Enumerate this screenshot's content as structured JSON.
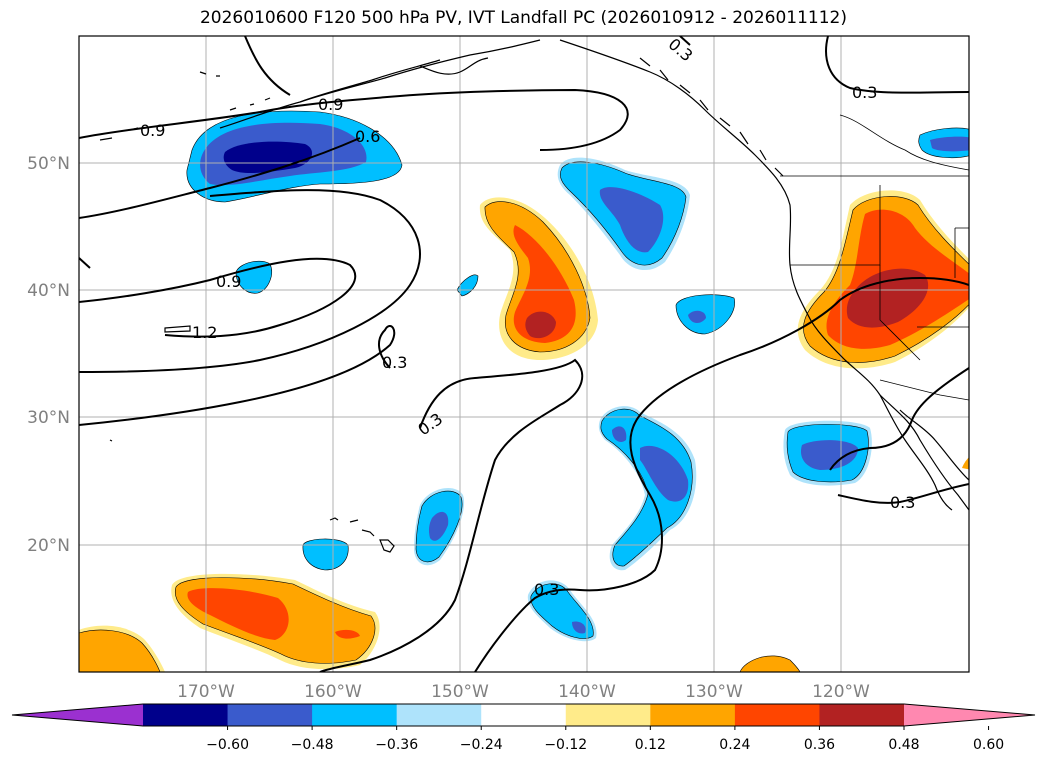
{
  "title": "2026010600 F120 500 hPa PV, IVT Landfall PC (2026010912 - 2026011112)",
  "lon_labels": [
    "170°W",
    "160°W",
    "150°W",
    "140°W",
    "130°W",
    "120°W"
  ],
  "lat_labels": [
    "50°N",
    "40°N",
    "30°N",
    "20°N"
  ],
  "colorbar": {
    "tick_labels": [
      "−0.60",
      "−0.48",
      "−0.36",
      "−0.24",
      "−0.12",
      "0.12",
      "0.24",
      "0.36",
      "0.48",
      "0.60"
    ],
    "colors": [
      "#9b30d0",
      "#00008b",
      "#3a5bcc",
      "#00bfff",
      "#aee3fb",
      "#ffffff",
      "#ffeb8a",
      "#ffa500",
      "#ff4500",
      "#b22222",
      "#ff88b0"
    ]
  },
  "contour_labels": [
    {
      "text": "0.9"
    },
    {
      "text": "0.9"
    },
    {
      "text": "0.6"
    },
    {
      "text": "0.9"
    },
    {
      "text": "1.2"
    },
    {
      "text": "0.3"
    },
    {
      "text": "0.3"
    },
    {
      "text": "0.3"
    },
    {
      "text": "0.3"
    },
    {
      "text": "0.3"
    },
    {
      "text": "0.3"
    }
  ]
}
